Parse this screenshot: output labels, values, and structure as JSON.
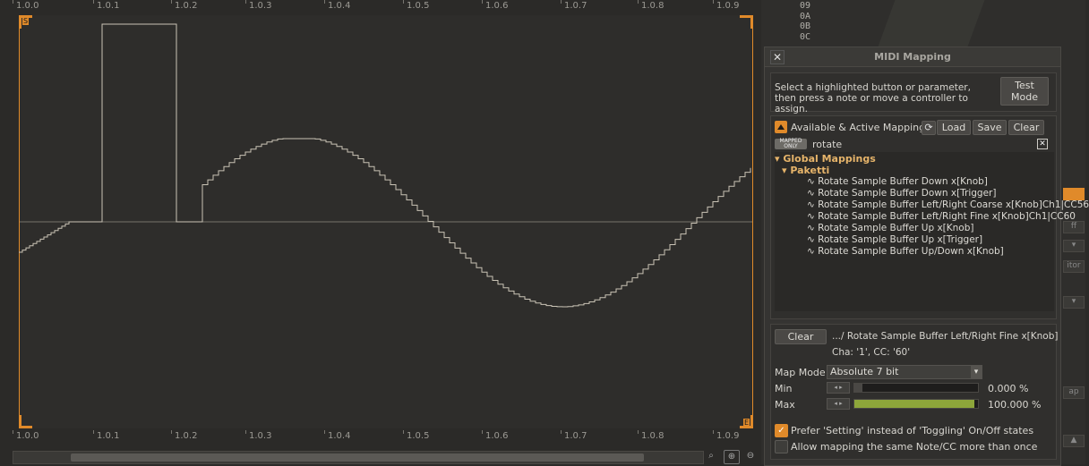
{
  "ruler": {
    "ticks": [
      "1.0.0",
      "1.0.1",
      "1.0.2",
      "1.0.3",
      "1.0.4",
      "1.0.5",
      "1.0.6",
      "1.0.7",
      "1.0.8",
      "1.0.9"
    ]
  },
  "markers": {
    "start": "S",
    "end": "E"
  },
  "colors": {
    "accent": "#e08a2a",
    "wave": "#c9c3b5",
    "slider_fill": "#8da63a"
  },
  "hex_column": [
    "09",
    "0A",
    "0B",
    "0C"
  ],
  "midi": {
    "title": "MIDI Mapping",
    "close_label": "✕",
    "instructions": "Select a highlighted button or parameter, then press a note or move a controller to assign.",
    "test_mode_label": "Test Mode",
    "section_label": "Available & Active Mappings",
    "load_label": "Load",
    "save_label": "Save",
    "clear_label": "Clear",
    "mapped_only_badge": "MAPPED ONLY",
    "filter_value": "rotate",
    "tree": {
      "global_label": "▾ Global Mappings",
      "group_label": "▾ Paketti",
      "items": [
        "∿ Rotate Sample Buffer Down x[Knob]",
        "∿ Rotate Sample Buffer Down x[Trigger]",
        "∿ Rotate Sample Buffer Left/Right Coarse x[Knob]Ch1|CC56",
        "∿ Rotate Sample Buffer Left/Right Fine x[Knob]Ch1|CC60",
        "∿ Rotate Sample Buffer Up x[Knob]",
        "∿ Rotate Sample Buffer Up x[Trigger]",
        "∿ Rotate Sample Buffer Up/Down x[Knob]"
      ]
    },
    "selected_clear_label": "Clear",
    "selected_path": ".../ Rotate Sample Buffer Left/Right Fine x[Knob]",
    "selected_assignment": "Cha: '1', CC: '60'",
    "map_mode_label": "Map Mode",
    "map_mode_value": "Absolute 7 bit",
    "min_label": "Min",
    "min_value": "0.000 %",
    "min_fraction": 0.0,
    "max_label": "Max",
    "max_value": "100.000 %",
    "max_fraction": 1.0,
    "prefer_setting_label": "Prefer 'Setting' instead of 'Toggling' On/Off states",
    "prefer_setting_checked": true,
    "allow_same_label": "Allow mapping the same Note/CC more than once",
    "allow_same_checked": false
  },
  "right_strip": {
    "labels": [
      "ff",
      "itor",
      "ap"
    ]
  }
}
